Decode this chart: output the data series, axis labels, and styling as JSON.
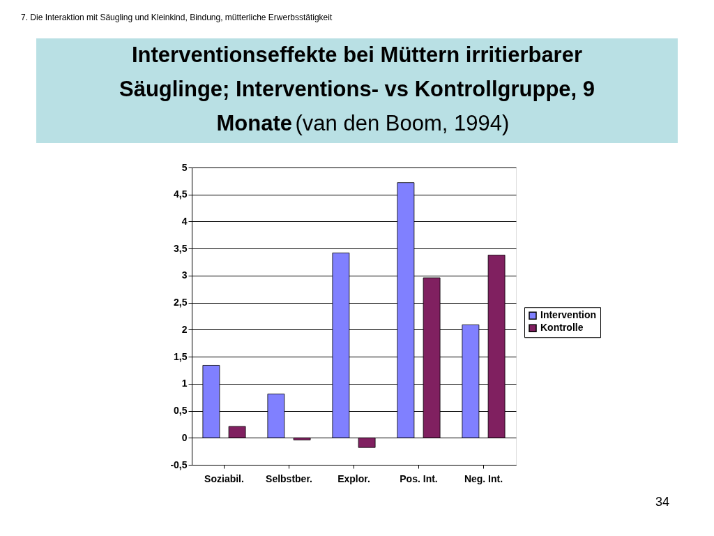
{
  "chart_data": {
    "type": "bar",
    "title": "Interventionseffekte bei Müttern irritierbarer Säuglinge; Interventions- vs Kontrollgruppe, 9 Monate",
    "subtitle": "(van den Boom, 1994)",
    "categories": [
      "Soziabil.",
      "Selbstber.",
      "Explor.",
      "Pos. Int.",
      "Neg. Int."
    ],
    "series": [
      {
        "name": "Intervention",
        "color": "#8080ff",
        "values": [
          1.34,
          0.81,
          3.42,
          4.72,
          2.09
        ]
      },
      {
        "name": "Kontrolle",
        "color": "#802060",
        "values": [
          0.21,
          -0.04,
          -0.18,
          2.96,
          3.38
        ]
      }
    ],
    "ylim": [
      -0.5,
      5
    ],
    "yticks": [
      {
        "value": -0.5,
        "label": "-0,5"
      },
      0,
      {
        "value": 0.5,
        "label": "0,5"
      },
      1,
      {
        "value": 1.5,
        "label": "1,5"
      },
      2,
      {
        "value": 2.5,
        "label": "2,5"
      },
      3,
      {
        "value": 3.5,
        "label": "3,5"
      },
      4,
      {
        "value": 4.5,
        "label": "4,5"
      },
      5
    ],
    "grid": "y",
    "legend": "right",
    "annotations": [
      "7. Die Interaktion mit Säugling und Kleinkind, Bindung, mütterliche Erwerbsstätigkeit",
      "34"
    ]
  }
}
